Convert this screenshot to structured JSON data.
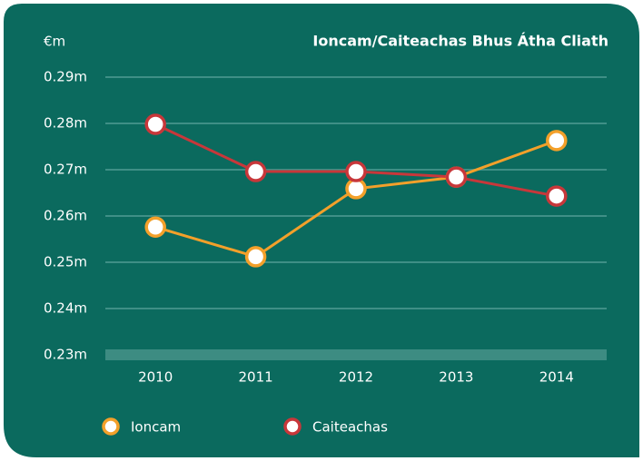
{
  "chart_data": {
    "type": "line",
    "title": "Ioncam/Caiteachas Bhus Átha Cliath",
    "y_label": "€m",
    "categories": [
      "2010",
      "2011",
      "2012",
      "2013",
      "2014"
    ],
    "series": [
      {
        "name": "Ioncam",
        "color": "#f3a02a",
        "values": [
          0.2576,
          0.2512,
          0.2659,
          0.2684,
          0.2763
        ]
      },
      {
        "name": "Caiteachas",
        "color": "#c8373a",
        "values": [
          0.2798,
          0.2696,
          0.2696,
          0.2684,
          0.2643
        ]
      }
    ],
    "ylim": [
      0.23,
      0.29
    ],
    "yticks": [
      {
        "value": 0.23,
        "label": "0.23m"
      },
      {
        "value": 0.24,
        "label": "0.24m"
      },
      {
        "value": 0.25,
        "label": "0.25m"
      },
      {
        "value": 0.26,
        "label": "0.26m"
      },
      {
        "value": 0.27,
        "label": "0.27m"
      },
      {
        "value": 0.28,
        "label": "0.28m"
      },
      {
        "value": 0.29,
        "label": "0.29m"
      }
    ],
    "grid": true,
    "legend": "bottom-left"
  }
}
